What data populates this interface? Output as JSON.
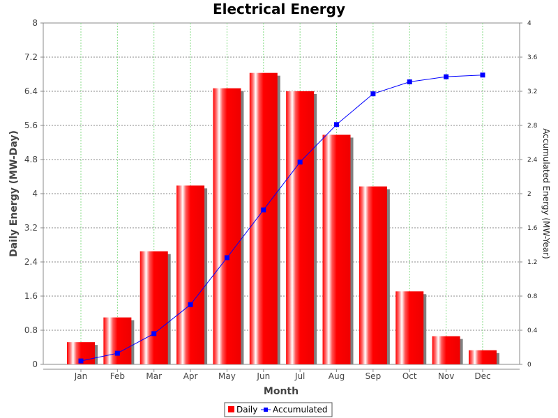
{
  "chart_data": {
    "type": "bar",
    "title": "Electrical Energy",
    "xlabel": "Month",
    "ylabel": "Daily Energy (MW-Day)",
    "y2label": "Accumulated Energy (MW-Year)",
    "categories": [
      "Jan",
      "Feb",
      "Mar",
      "Apr",
      "May",
      "Jun",
      "Jul",
      "Aug",
      "Sep",
      "Oct",
      "Nov",
      "Dec"
    ],
    "ylim": [
      0,
      8
    ],
    "y2lim": [
      0,
      4
    ],
    "yticks": [
      "0",
      "0.8",
      "1.6",
      "2.4",
      "3.2",
      "4",
      "4.8",
      "5.6",
      "6.4",
      "7.2",
      "8"
    ],
    "y2ticks": [
      "0",
      "0.4",
      "0.8",
      "1.2",
      "1.6",
      "2",
      "2.4",
      "2.8",
      "3.2",
      "3.6",
      "4"
    ],
    "series": [
      {
        "name": "Daily",
        "type": "bar",
        "axis": "left",
        "color": "#ff0000",
        "values": [
          0.52,
          1.1,
          2.65,
          4.19,
          6.47,
          6.83,
          6.4,
          5.38,
          4.17,
          1.71,
          0.66,
          0.33
        ]
      },
      {
        "name": "Accumulated",
        "type": "line",
        "axis": "right",
        "color": "#0000ff",
        "values": [
          0.04,
          0.13,
          0.36,
          0.7,
          1.25,
          1.81,
          2.37,
          2.81,
          3.17,
          3.31,
          3.37,
          3.39
        ]
      }
    ],
    "grid": true,
    "legend_position": "bottom"
  }
}
